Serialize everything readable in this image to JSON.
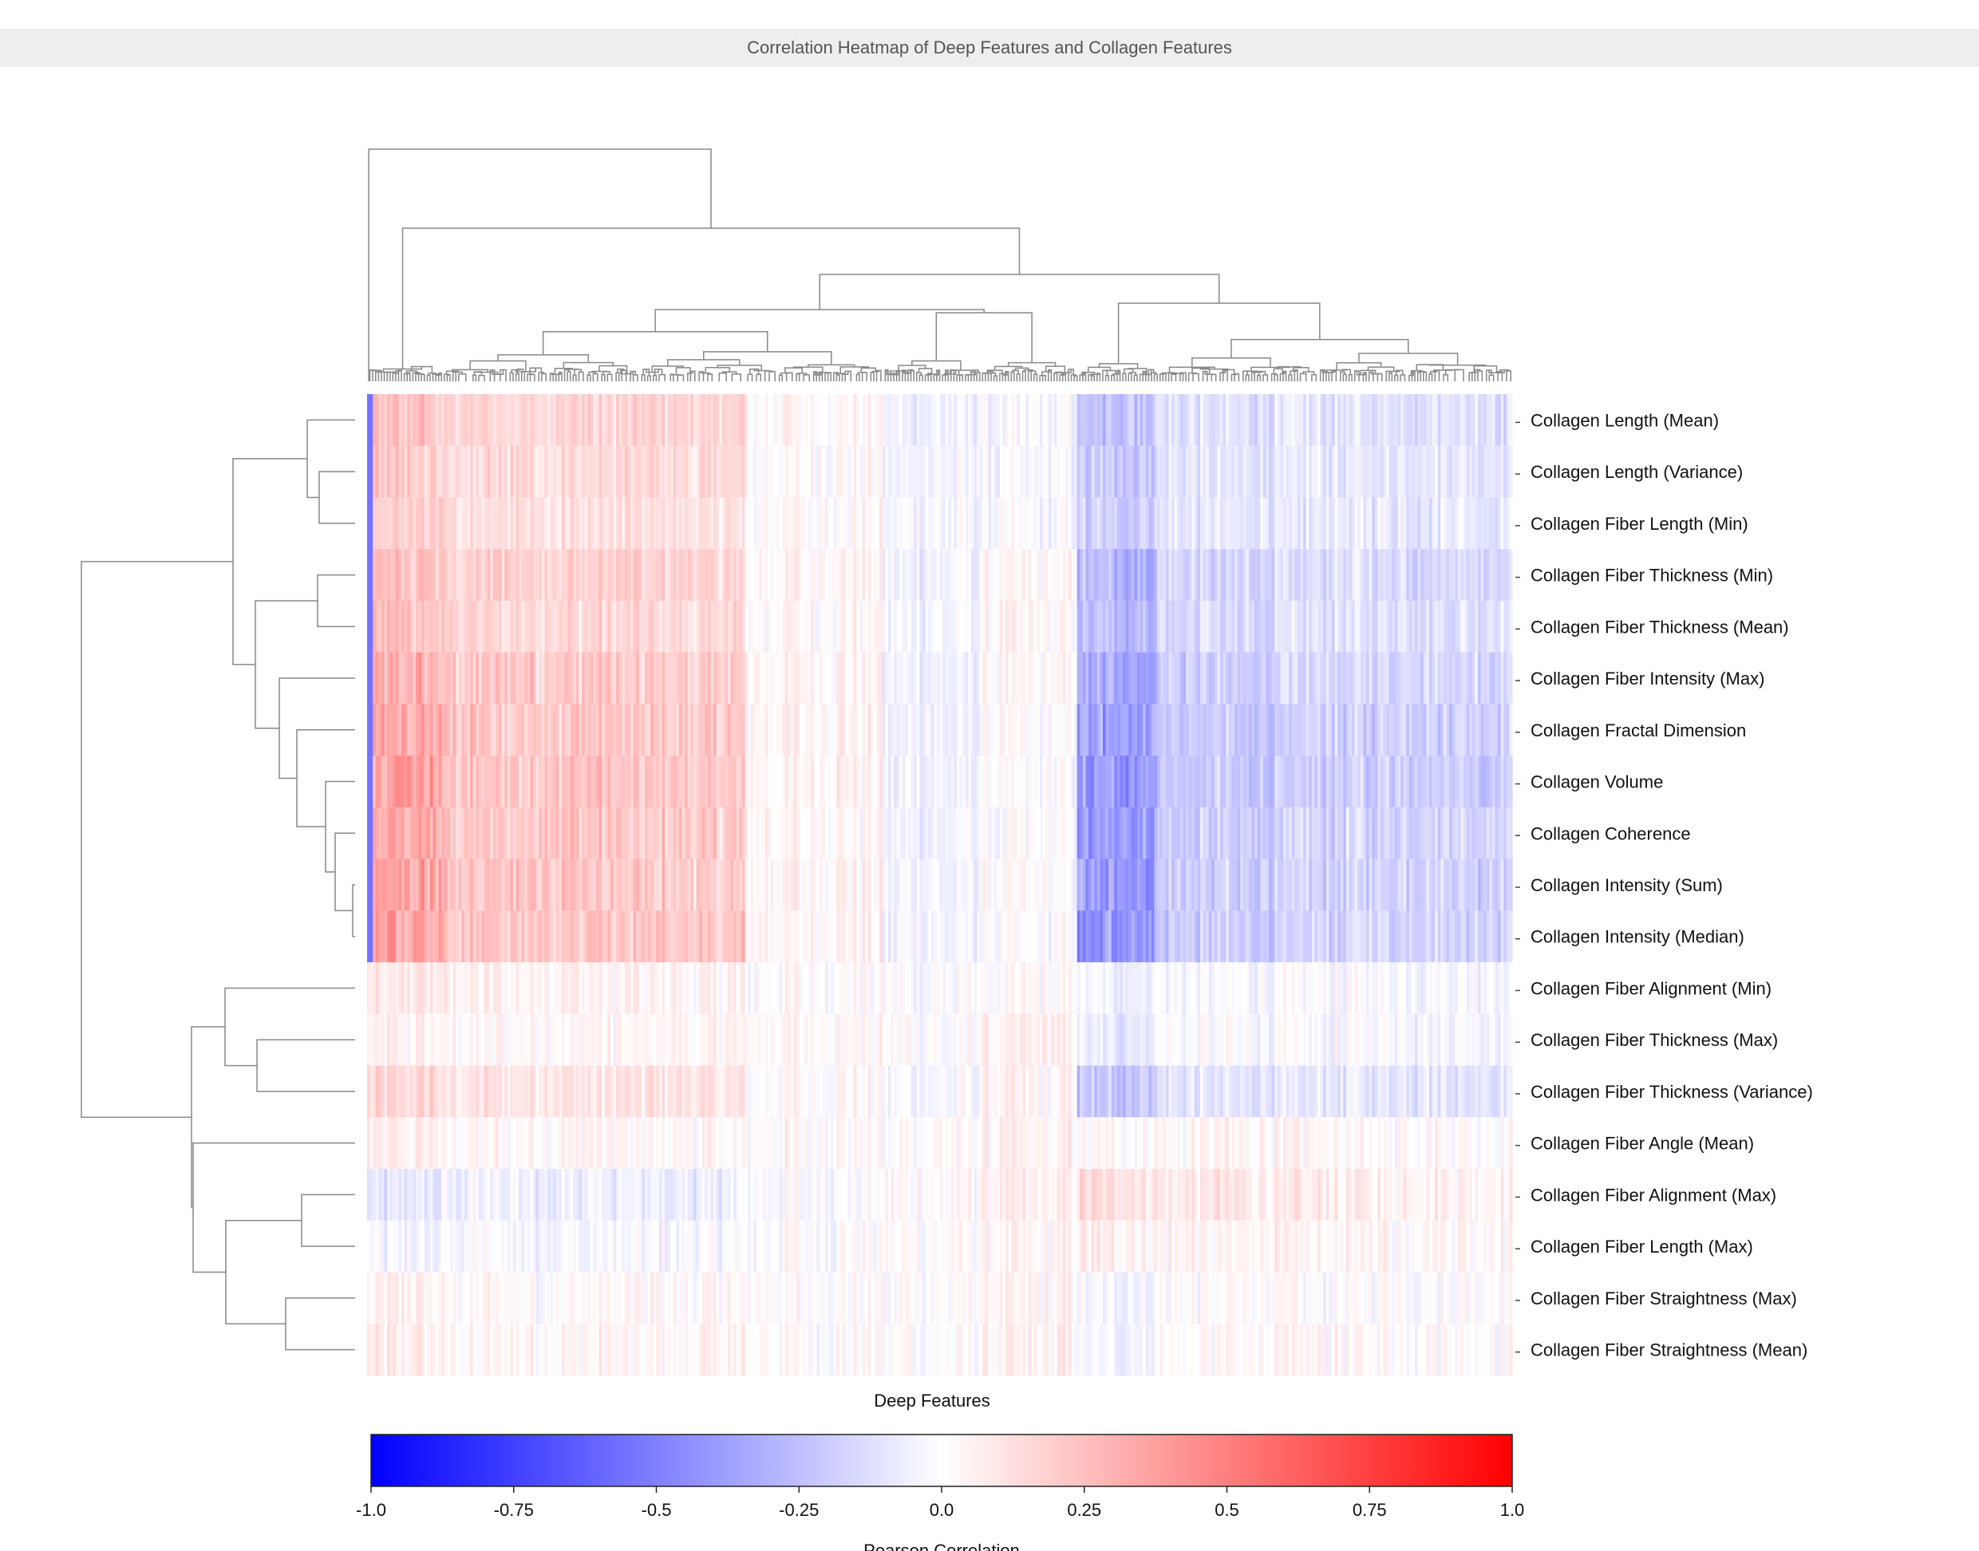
{
  "chart_data": {
    "type": "heatmap",
    "title": "Correlation Heatmap of Deep Features and Collagen Features",
    "xlabel": "Deep Features",
    "colorbar_label": "Pearson Correlation",
    "colorbar_ticks": [
      "-1.0",
      "-0.75",
      "-0.5",
      "-0.25",
      "0.0",
      "0.25",
      "0.5",
      "0.75",
      "1.0"
    ],
    "value_range": [
      -1.0,
      1.0
    ],
    "colormap": {
      "low": "#0000ff",
      "mid": "#ffffff",
      "high": "#ff0000"
    },
    "n_deep_features": 400,
    "row_dendrogram": true,
    "column_dendrogram": true,
    "rows": [
      {
        "label": "Collagen Length (Mean)",
        "cluster_strengths": [
          0.22,
          0.16,
          0.15,
          0.03,
          -0.05,
          -0.03,
          -0.22,
          -0.12,
          -0.1
        ]
      },
      {
        "label": "Collagen Length (Variance)",
        "cluster_strengths": [
          0.2,
          0.14,
          0.13,
          0.02,
          -0.04,
          -0.03,
          -0.2,
          -0.11,
          -0.09
        ]
      },
      {
        "label": "Collagen Fiber Length (Min)",
        "cluster_strengths": [
          0.18,
          0.12,
          0.11,
          0.02,
          -0.04,
          -0.02,
          -0.18,
          -0.1,
          -0.08
        ]
      },
      {
        "label": "Collagen Fiber Thickness (Min)",
        "cluster_strengths": [
          0.25,
          0.18,
          0.17,
          0.04,
          -0.05,
          0.02,
          -0.28,
          -0.16,
          -0.13
        ]
      },
      {
        "label": "Collagen Fiber Thickness (Mean)",
        "cluster_strengths": [
          0.23,
          0.16,
          0.15,
          0.03,
          -0.04,
          0.02,
          -0.26,
          -0.14,
          -0.11
        ]
      },
      {
        "label": "Collagen Fiber Intensity (Max)",
        "cluster_strengths": [
          0.3,
          0.21,
          0.19,
          0.04,
          -0.05,
          0.01,
          -0.33,
          -0.19,
          -0.15
        ]
      },
      {
        "label": "Collagen Fractal Dimension",
        "cluster_strengths": [
          0.32,
          0.22,
          0.2,
          0.05,
          -0.06,
          0.0,
          -0.36,
          -0.21,
          -0.17
        ]
      },
      {
        "label": "Collagen Volume",
        "cluster_strengths": [
          0.36,
          0.23,
          0.21,
          0.05,
          -0.06,
          -0.01,
          -0.42,
          -0.22,
          -0.18
        ]
      },
      {
        "label": "Collagen Coherence",
        "cluster_strengths": [
          0.34,
          0.22,
          0.2,
          0.04,
          -0.05,
          -0.01,
          -0.38,
          -0.2,
          -0.16
        ]
      },
      {
        "label": "Collagen Intensity (Sum)",
        "cluster_strengths": [
          0.35,
          0.22,
          0.2,
          0.04,
          -0.05,
          -0.01,
          -0.39,
          -0.2,
          -0.16
        ]
      },
      {
        "label": "Collagen Intensity (Median)",
        "cluster_strengths": [
          0.36,
          0.23,
          0.21,
          0.04,
          -0.05,
          -0.01,
          -0.4,
          -0.2,
          -0.16
        ]
      },
      {
        "label": "Collagen Fiber Alignment (Min)",
        "cluster_strengths": [
          0.08,
          0.05,
          0.04,
          0.01,
          -0.01,
          0.0,
          -0.05,
          -0.03,
          -0.02
        ]
      },
      {
        "label": "Collagen Fiber Thickness (Max)",
        "cluster_strengths": [
          0.05,
          0.03,
          0.03,
          0.03,
          0.0,
          0.05,
          -0.08,
          -0.02,
          -0.02
        ]
      },
      {
        "label": "Collagen Fiber Thickness (Variance)",
        "cluster_strengths": [
          0.14,
          0.1,
          0.1,
          0.02,
          -0.03,
          0.03,
          -0.22,
          -0.11,
          -0.09
        ]
      },
      {
        "label": "Collagen Fiber Angle (Mean)",
        "cluster_strengths": [
          0.06,
          0.03,
          0.02,
          0.02,
          0.01,
          0.04,
          0.02,
          0.03,
          0.02
        ]
      },
      {
        "label": "Collagen Fiber Alignment  (Max)",
        "cluster_strengths": [
          -0.1,
          -0.06,
          -0.06,
          -0.01,
          0.02,
          0.05,
          0.12,
          0.08,
          0.06
        ]
      },
      {
        "label": "Collagen Fiber Length (Max)",
        "cluster_strengths": [
          -0.04,
          -0.03,
          -0.03,
          0.0,
          0.01,
          0.03,
          0.06,
          0.04,
          0.03
        ]
      },
      {
        "label": "Collagen Fiber Straightness (Max)",
        "cluster_strengths": [
          0.04,
          0.02,
          0.02,
          0.02,
          0.0,
          0.03,
          -0.03,
          0.01,
          0.01
        ]
      },
      {
        "label": "Collagen Fiber Straightness (Mean)",
        "cluster_strengths": [
          0.06,
          0.03,
          0.03,
          0.02,
          0.0,
          0.04,
          -0.04,
          0.02,
          0.02
        ]
      }
    ],
    "column_cluster_fractions": [
      0.065,
      0.14,
      0.125,
      0.12,
      0.085,
      0.085,
      0.07,
      0.125,
      0.185
    ]
  }
}
